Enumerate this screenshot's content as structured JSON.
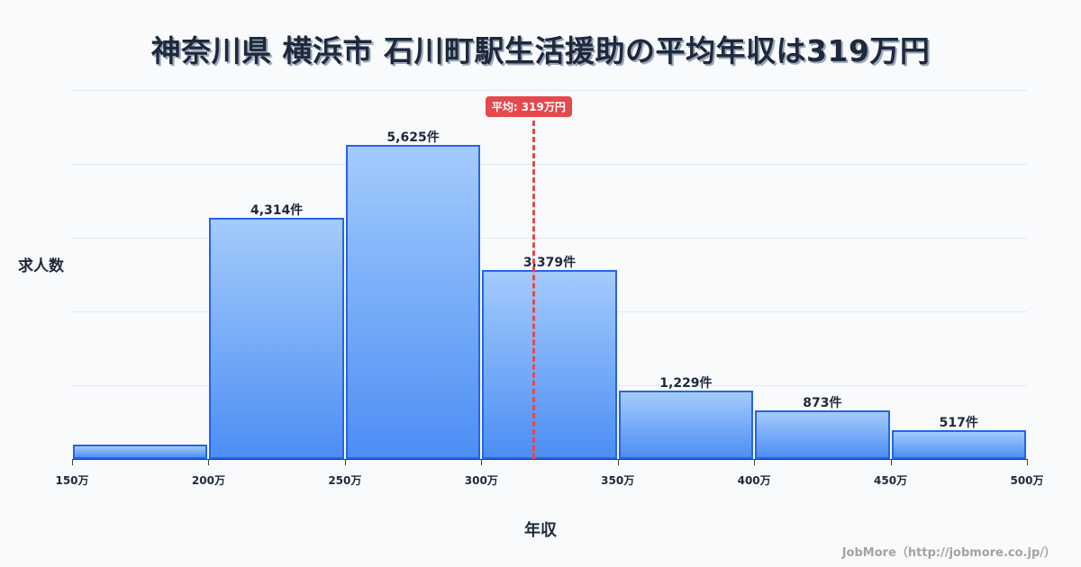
{
  "title": "神奈川県 横浜市 石川町駅生活援助の平均年収は319万円",
  "y_axis_label": "求人数",
  "x_axis_label": "年収",
  "mean_badge": "平均: 319万円",
  "footer": "JobMore（http://jobmore.co.jp/）",
  "colors": {
    "bar_border": "#2563eb",
    "bar_top": "#a3cbfc",
    "bar_bottom": "#4d8ef5",
    "mean": "#e5484d",
    "text": "#1e293b"
  },
  "chart_data": {
    "type": "bar",
    "title": "神奈川県 横浜市 石川町駅生活援助の平均年収は319万円",
    "xlabel": "年収",
    "ylabel": "求人数",
    "categories": [
      "150-200万",
      "200-250万",
      "250-300万",
      "300-350万",
      "350-400万",
      "400-450万",
      "450-500万"
    ],
    "values": [
      260,
      4314,
      5625,
      3379,
      1229,
      873,
      517
    ],
    "labels": [
      "",
      "4,314件",
      "5,625件",
      "3,379件",
      "1,229件",
      "873件",
      "517件"
    ],
    "x_ticks": [
      "150万",
      "200万",
      "250万",
      "300万",
      "350万",
      "400万",
      "450万",
      "500万"
    ],
    "xlim": [
      150,
      500
    ],
    "ylim": [
      0,
      6600
    ],
    "mean": 319,
    "mean_label": "平均: 319万円",
    "grid": true,
    "legend": null
  }
}
